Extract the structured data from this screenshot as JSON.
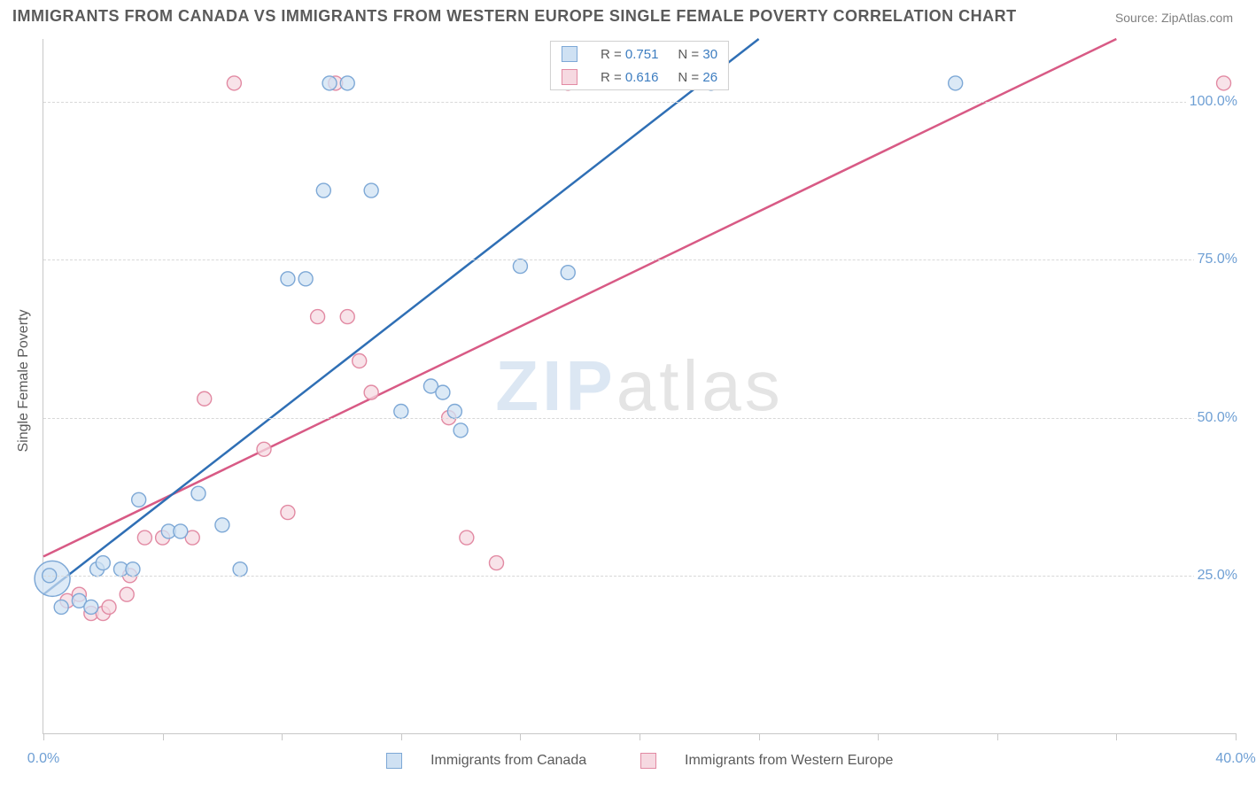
{
  "title": "IMMIGRANTS FROM CANADA VS IMMIGRANTS FROM WESTERN EUROPE SINGLE FEMALE POVERTY CORRELATION CHART",
  "source": "Source: ZipAtlas.com",
  "yaxis_title": "Single Female Poverty",
  "watermark_brand_first": "ZIP",
  "watermark_brand_rest": "atlas",
  "chart": {
    "type": "scatter",
    "xlim": [
      0,
      40
    ],
    "ylim": [
      0,
      110
    ],
    "grid_y": [
      25,
      50,
      75,
      100
    ],
    "ylabels": [
      "25.0%",
      "50.0%",
      "75.0%",
      "100.0%"
    ],
    "xticks": [
      0,
      4,
      8,
      12,
      16,
      20,
      24,
      28,
      32,
      36,
      40
    ],
    "xlabels": {
      "0": "0.0%",
      "40": "40.0%"
    },
    "background_color": "#ffffff",
    "grid_color": "#d8d8d8",
    "axis_color": "#c8c8c8",
    "label_color": "#6e9fd4",
    "series": [
      {
        "name": "Immigrants from Canada",
        "fill": "#cfe1f3",
        "stroke": "#7da8d6",
        "line_stroke": "#2f6fb5",
        "marker_r": 8,
        "R": "0.751",
        "N": "30",
        "trend": {
          "x1": 0,
          "y1": 22,
          "x2": 24,
          "y2": 110
        },
        "points": [
          [
            0.2,
            25
          ],
          [
            0.6,
            20
          ],
          [
            1.2,
            21
          ],
          [
            1.6,
            20
          ],
          [
            1.8,
            26
          ],
          [
            2.0,
            27
          ],
          [
            2.6,
            26
          ],
          [
            3.0,
            26
          ],
          [
            3.2,
            37
          ],
          [
            4.2,
            32
          ],
          [
            4.6,
            32
          ],
          [
            5.2,
            38
          ],
          [
            6.0,
            33
          ],
          [
            6.6,
            26
          ],
          [
            8.2,
            72
          ],
          [
            8.8,
            72
          ],
          [
            9.4,
            86
          ],
          [
            9.6,
            103
          ],
          [
            10.2,
            103
          ],
          [
            11.0,
            86
          ],
          [
            12.0,
            51
          ],
          [
            13.0,
            55
          ],
          [
            13.4,
            54
          ],
          [
            13.8,
            51
          ],
          [
            14.0,
            48
          ],
          [
            16.0,
            74
          ],
          [
            17.6,
            73
          ],
          [
            22.4,
            103
          ],
          [
            30.6,
            103
          ]
        ],
        "big_point": {
          "x": 0.3,
          "y": 24.5,
          "r": 20
        }
      },
      {
        "name": "Immigrants from Western Europe",
        "fill": "#f6d9e1",
        "stroke": "#e28aa3",
        "line_stroke": "#d85a85",
        "marker_r": 8,
        "R": "0.616",
        "N": "26",
        "trend": {
          "x1": 0,
          "y1": 28,
          "x2": 36,
          "y2": 110
        },
        "points": [
          [
            0.8,
            21
          ],
          [
            1.2,
            22
          ],
          [
            1.6,
            19
          ],
          [
            2.0,
            19
          ],
          [
            2.2,
            20
          ],
          [
            2.8,
            22
          ],
          [
            2.9,
            25
          ],
          [
            3.4,
            31
          ],
          [
            4.0,
            31
          ],
          [
            5.0,
            31
          ],
          [
            5.4,
            53
          ],
          [
            6.4,
            103
          ],
          [
            7.4,
            45
          ],
          [
            8.2,
            35
          ],
          [
            9.2,
            66
          ],
          [
            9.8,
            103
          ],
          [
            10.2,
            66
          ],
          [
            10.6,
            59
          ],
          [
            11.0,
            54
          ],
          [
            13.6,
            50
          ],
          [
            14.2,
            31
          ],
          [
            15.2,
            27
          ],
          [
            17.6,
            103
          ],
          [
            39.6,
            103
          ]
        ]
      }
    ]
  },
  "legend_bottom": [
    {
      "swatch_fill": "#cfe1f3",
      "swatch_stroke": "#7da8d6",
      "label": "Immigrants from Canada"
    },
    {
      "swatch_fill": "#f6d9e1",
      "swatch_stroke": "#e28aa3",
      "label": "Immigrants from Western Europe"
    }
  ]
}
